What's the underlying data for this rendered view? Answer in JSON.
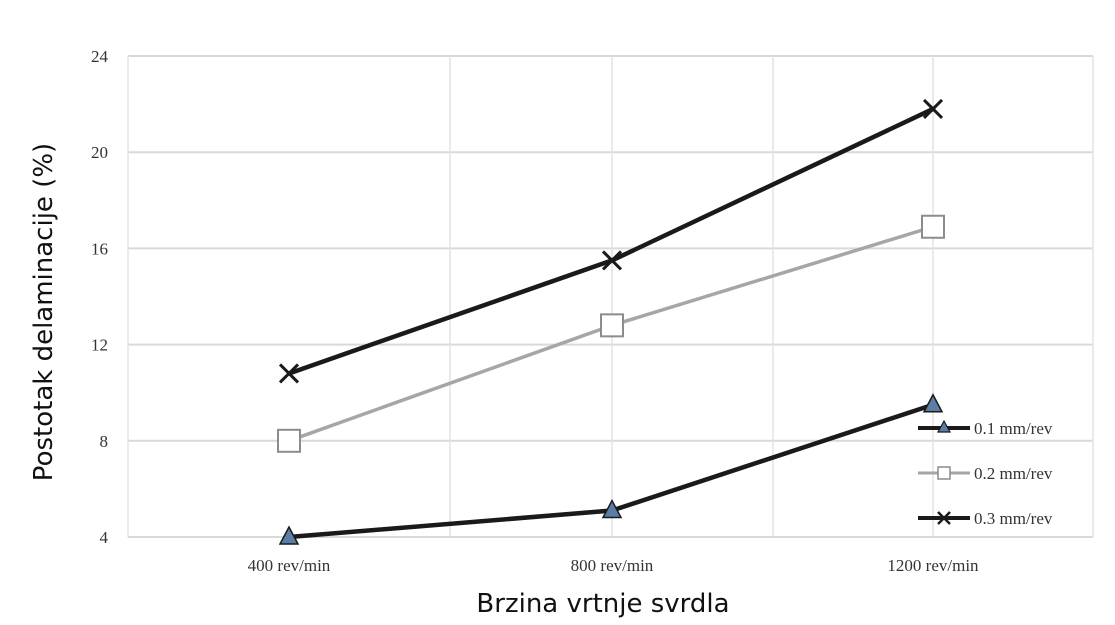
{
  "chart_data": {
    "type": "line",
    "categories": [
      "400 rev/min",
      "800 rev/min",
      "1200 rev/min"
    ],
    "xlabel": "Brzina vrtnje svrdla",
    "ylabel": "Postotak delaminacije (%)",
    "ylim": [
      4,
      24
    ],
    "yticks": [
      4,
      8,
      12,
      16,
      20,
      24
    ],
    "grid": true,
    "legend_position": "bottom-right",
    "series": [
      {
        "name": "0.1 mm/rev",
        "values": [
          4.0,
          5.1,
          9.5
        ],
        "color": "#1a1a1a",
        "marker": "triangle",
        "marker_fill": "#5b7ea6"
      },
      {
        "name": "0.2 mm/rev",
        "values": [
          8.0,
          12.8,
          16.9
        ],
        "color": "#a6a6a6",
        "marker": "square",
        "marker_fill": "#ffffff"
      },
      {
        "name": "0.3 mm/rev",
        "values": [
          10.8,
          15.5,
          21.8
        ],
        "color": "#1a1a1a",
        "marker": "x",
        "marker_fill": "none"
      }
    ]
  }
}
